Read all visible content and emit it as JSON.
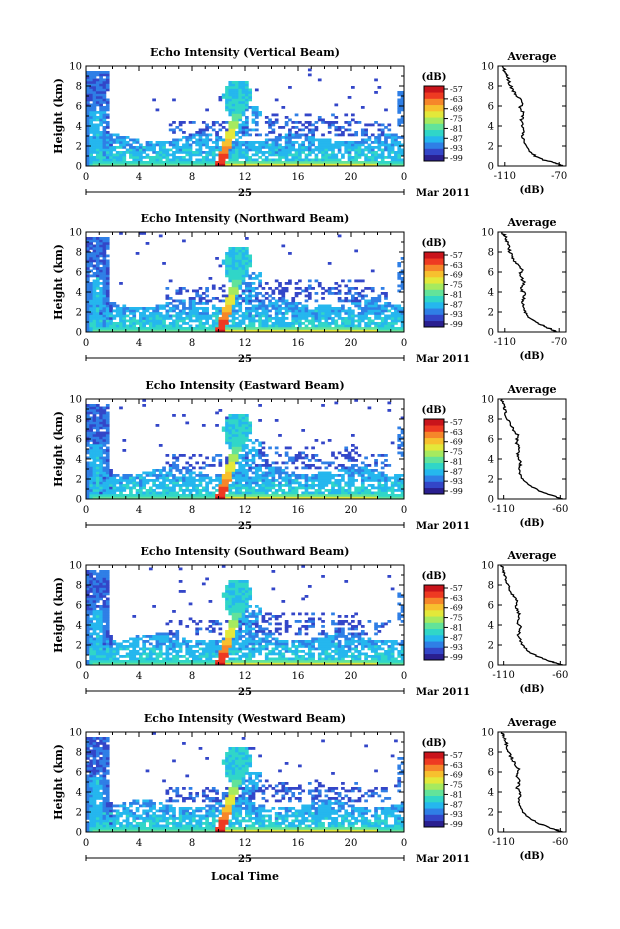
{
  "figure": {
    "xlabel": "Local Time",
    "date_label": "25",
    "month_label": "Mar 2011",
    "colorbar_unit": "(dB)",
    "colorbar_ticks": [
      "-57",
      "-63",
      "-69",
      "-75",
      "-81",
      "-87",
      "-93",
      "-99"
    ],
    "colors": [
      "#2a1f8f",
      "#3346c8",
      "#2f7fe6",
      "#25b7ee",
      "#30d6c8",
      "#62e39a",
      "#a6ea5f",
      "#e3e83a",
      "#f7c02e",
      "#f6862a",
      "#ee3a22",
      "#c9141b"
    ]
  },
  "chart_data": [
    {
      "type": "heatmap",
      "title": "Echo Intensity (Vertical Beam)",
      "ylabel": "Height (km)",
      "xlim": [
        0,
        24
      ],
      "ylim": [
        0,
        10
      ],
      "xticks": [
        "0",
        "4",
        "8",
        "12",
        "16",
        "20",
        "0"
      ],
      "yticks": [
        "0",
        "2",
        "4",
        "6",
        "8",
        "10"
      ],
      "profile": {
        "title": "Average",
        "xlabel": "(dB)",
        "xticks": [
          "-110",
          "-70"
        ],
        "xlim": [
          -115,
          -65
        ],
        "ylim": [
          0,
          10
        ],
        "points": [
          [
            -68,
            0
          ],
          [
            -72,
            0.3
          ],
          [
            -82,
            0.6
          ],
          [
            -90,
            1.2
          ],
          [
            -95,
            2
          ],
          [
            -97,
            3
          ],
          [
            -96,
            3.8
          ],
          [
            -98,
            4.5
          ],
          [
            -96,
            5.2
          ],
          [
            -99,
            5.8
          ],
          [
            -97,
            6.3
          ],
          [
            -101,
            7
          ],
          [
            -104,
            7.6
          ],
          [
            -107,
            8.3
          ],
          [
            -108,
            9
          ],
          [
            -110,
            9.5
          ],
          [
            -112,
            10
          ]
        ]
      }
    },
    {
      "type": "heatmap",
      "title": "Echo Intensity (Northward Beam)",
      "ylabel": "Height (km)",
      "xlim": [
        0,
        24
      ],
      "ylim": [
        0,
        10
      ],
      "xticks": [
        "0",
        "4",
        "8",
        "12",
        "16",
        "20",
        "0"
      ],
      "yticks": [
        "0",
        "2",
        "4",
        "6",
        "8",
        "10"
      ],
      "profile": {
        "title": "Average",
        "xlabel": "(dB)",
        "xticks": [
          "-110",
          "-70"
        ],
        "xlim": [
          -115,
          -65
        ],
        "ylim": [
          0,
          10
        ],
        "points": [
          [
            -72,
            0
          ],
          [
            -78,
            0.4
          ],
          [
            -86,
            0.9
          ],
          [
            -92,
            1.5
          ],
          [
            -96,
            2.2
          ],
          [
            -97,
            3
          ],
          [
            -95,
            3.7
          ],
          [
            -98,
            4.3
          ],
          [
            -96,
            5
          ],
          [
            -99,
            5.7
          ],
          [
            -97,
            6.3
          ],
          [
            -102,
            7
          ],
          [
            -105,
            7.6
          ],
          [
            -107,
            8.3
          ],
          [
            -108,
            9
          ],
          [
            -110,
            9.6
          ],
          [
            -112,
            10
          ]
        ]
      }
    },
    {
      "type": "heatmap",
      "title": "Echo Intensity (Eastward Beam)",
      "ylabel": "Height (km)",
      "xlim": [
        0,
        24
      ],
      "ylim": [
        0,
        10
      ],
      "xticks": [
        "0",
        "4",
        "8",
        "12",
        "16",
        "20",
        "0"
      ],
      "yticks": [
        "0",
        "2",
        "4",
        "6",
        "8",
        "10"
      ],
      "profile": {
        "title": "Average",
        "xlabel": "(dB)",
        "xticks": [
          "-110",
          "-60"
        ],
        "xlim": [
          -115,
          -55
        ],
        "ylim": [
          0,
          10
        ],
        "points": [
          [
            -58,
            0
          ],
          [
            -66,
            0.3
          ],
          [
            -78,
            0.8
          ],
          [
            -88,
            1.4
          ],
          [
            -94,
            2.1
          ],
          [
            -97,
            3
          ],
          [
            -95,
            3.6
          ],
          [
            -98,
            4.3
          ],
          [
            -96,
            5
          ],
          [
            -99,
            5.7
          ],
          [
            -97,
            6.3
          ],
          [
            -102,
            7
          ],
          [
            -105,
            7.7
          ],
          [
            -108,
            8.4
          ],
          [
            -109,
            9
          ],
          [
            -111,
            9.6
          ],
          [
            -112,
            10
          ]
        ]
      }
    },
    {
      "type": "heatmap",
      "title": "Echo Intensity (Southward Beam)",
      "ylabel": "Height (km)",
      "xlim": [
        0,
        24
      ],
      "ylim": [
        0,
        10
      ],
      "xticks": [
        "0",
        "4",
        "8",
        "12",
        "16",
        "20",
        "0"
      ],
      "yticks": [
        "0",
        "2",
        "4",
        "6",
        "8",
        "10"
      ],
      "profile": {
        "title": "Average",
        "xlabel": "(dB)",
        "xticks": [
          "-110",
          "-60"
        ],
        "xlim": [
          -115,
          -55
        ],
        "ylim": [
          0,
          10
        ],
        "points": [
          [
            -58,
            0
          ],
          [
            -67,
            0.3
          ],
          [
            -79,
            0.8
          ],
          [
            -89,
            1.4
          ],
          [
            -94,
            2.1
          ],
          [
            -97,
            3
          ],
          [
            -95,
            3.7
          ],
          [
            -98,
            4.4
          ],
          [
            -96,
            5
          ],
          [
            -99,
            5.7
          ],
          [
            -98,
            6.3
          ],
          [
            -102,
            7
          ],
          [
            -105,
            7.6
          ],
          [
            -107,
            8.3
          ],
          [
            -109,
            9
          ],
          [
            -111,
            9.6
          ],
          [
            -112,
            10
          ]
        ]
      }
    },
    {
      "type": "heatmap",
      "title": "Echo Intensity (Westward Beam)",
      "ylabel": "Height (km)",
      "xlim": [
        0,
        24
      ],
      "ylim": [
        0,
        10
      ],
      "xticks": [
        "0",
        "4",
        "8",
        "12",
        "16",
        "20",
        "0"
      ],
      "yticks": [
        "0",
        "2",
        "4",
        "6",
        "8",
        "10"
      ],
      "profile": {
        "title": "Average",
        "xlabel": "(dB)",
        "xticks": [
          "-110",
          "-60"
        ],
        "xlim": [
          -115,
          -55
        ],
        "ylim": [
          0,
          10
        ],
        "points": [
          [
            -58,
            0
          ],
          [
            -66,
            0.3
          ],
          [
            -78,
            0.8
          ],
          [
            -88,
            1.4
          ],
          [
            -94,
            2.1
          ],
          [
            -97,
            3
          ],
          [
            -95,
            3.7
          ],
          [
            -98,
            4.4
          ],
          [
            -96,
            5
          ],
          [
            -99,
            5.7
          ],
          [
            -97,
            6.3
          ],
          [
            -101,
            7
          ],
          [
            -104,
            7.6
          ],
          [
            -107,
            8.3
          ],
          [
            -108,
            9
          ],
          [
            -110,
            9.6
          ],
          [
            -112,
            10
          ]
        ]
      }
    }
  ]
}
